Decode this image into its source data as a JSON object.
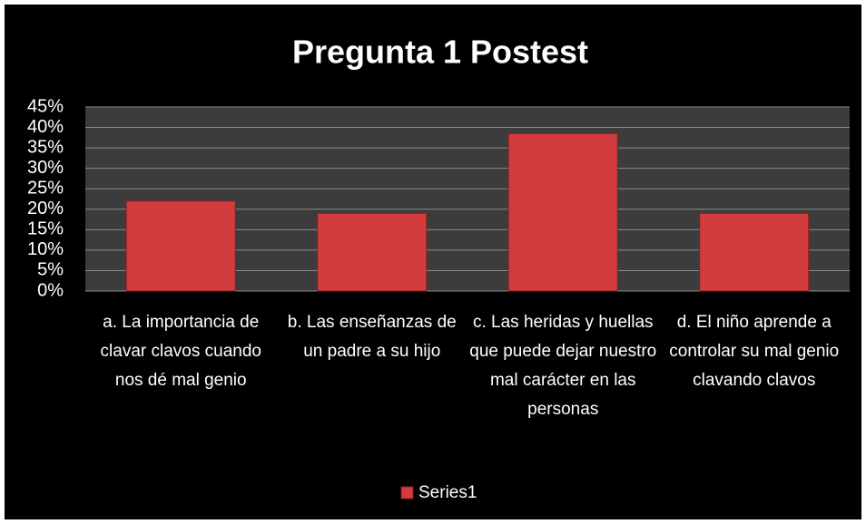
{
  "chart_data": {
    "type": "bar",
    "title": "Pregunta 1 Postest",
    "categories": [
      "a. La importancia de clavar clavos cuando nos dé mal genio",
      "b. Las enseñanzas de un padre a su hijo",
      "c. Las heridas y huellas que puede dejar nuestro mal carácter en las personas",
      "d. El niño aprende a controlar su mal genio clavando clavos"
    ],
    "series": [
      {
        "name": "Series1",
        "color": "#d33c3c",
        "values": [
          22,
          19,
          38.5,
          19
        ]
      }
    ],
    "ylim": [
      0,
      45
    ],
    "yticks": [
      {
        "value": 0,
        "label": "0%"
      },
      {
        "value": 5,
        "label": "5%"
      },
      {
        "value": 10,
        "label": "10%"
      },
      {
        "value": 15,
        "label": "15%"
      },
      {
        "value": 20,
        "label": "20%"
      },
      {
        "value": 25,
        "label": "25%"
      },
      {
        "value": 30,
        "label": "30%"
      },
      {
        "value": 35,
        "label": "35%"
      },
      {
        "value": 40,
        "label": "40%"
      },
      {
        "value": 45,
        "label": "45%"
      }
    ],
    "grid": true,
    "legend": "bottom"
  }
}
